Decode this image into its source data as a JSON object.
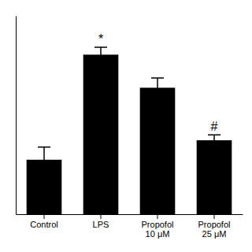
{
  "chart_data": {
    "type": "bar",
    "categories": [
      "Control",
      "LPS",
      "Propofol\n10 μM",
      "Propofol\n25 μM"
    ],
    "values": [
      0.28,
      0.82,
      0.65,
      0.38
    ],
    "errors": [
      0.065,
      0.038,
      0.05,
      0.028
    ],
    "color": "#000000",
    "ylim": [
      0,
      1.02
    ],
    "annotations": [
      {
        "category": "LPS",
        "text": "*"
      },
      {
        "category": "Propofol\n25 μM",
        "text": "#"
      }
    ],
    "grid": false,
    "tick_labels": "x"
  }
}
